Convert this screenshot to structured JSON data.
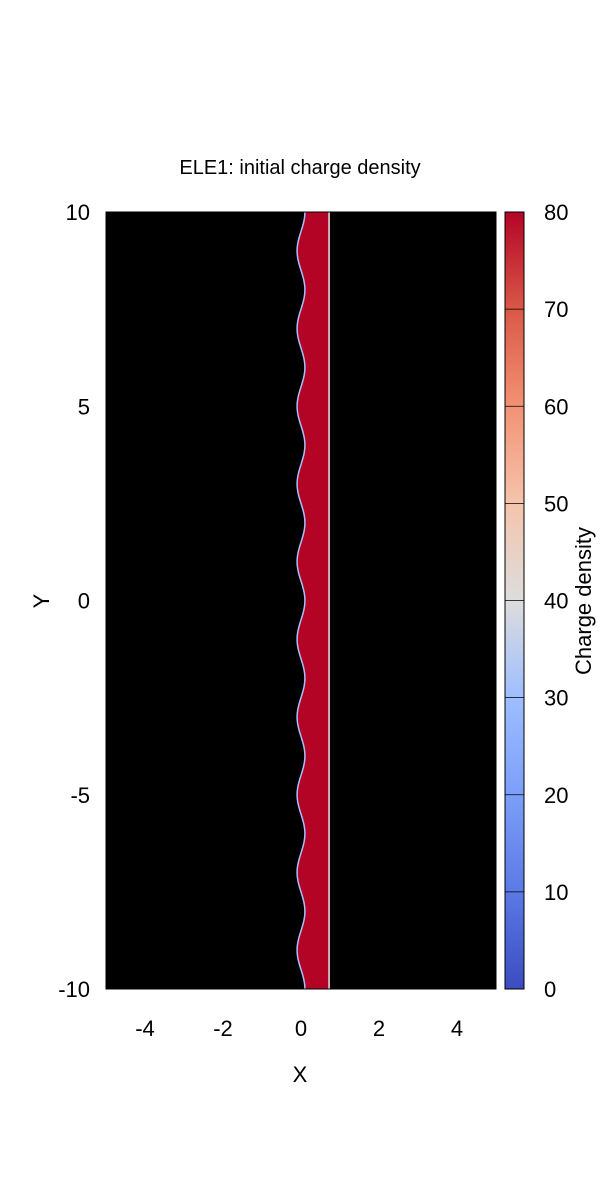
{
  "chart_data": {
    "type": "heatmap",
    "title": "ELE1: initial charge density",
    "xlabel": "X",
    "ylabel": "Y",
    "xlim": [
      -5,
      5
    ],
    "ylim": [
      -10,
      10
    ],
    "x_ticks": [
      -4,
      -2,
      0,
      2,
      4
    ],
    "y_ticks": [
      -10,
      -5,
      0,
      5,
      10
    ],
    "background_value": 0,
    "background_color": "#000000",
    "band": {
      "value": 80,
      "color": "#b40426",
      "x_right": 0.72,
      "left_edge_center_x": 0,
      "left_edge_amplitude": 0.1,
      "left_edge_wavelength": 2.0,
      "edge_color": "#a3c2ff"
    },
    "colorbar": {
      "label": "Charge density",
      "range": [
        0,
        80
      ],
      "ticks": [
        0,
        10,
        20,
        30,
        40,
        50,
        60,
        70,
        80
      ],
      "colors": [
        "#3b4cc0",
        "#6688ee",
        "#88aaff",
        "#aac8ff",
        "#dddddd",
        "#f2cbb7",
        "#f49a7b",
        "#e0654f",
        "#b40426"
      ]
    },
    "grid": false,
    "legend": "none"
  }
}
